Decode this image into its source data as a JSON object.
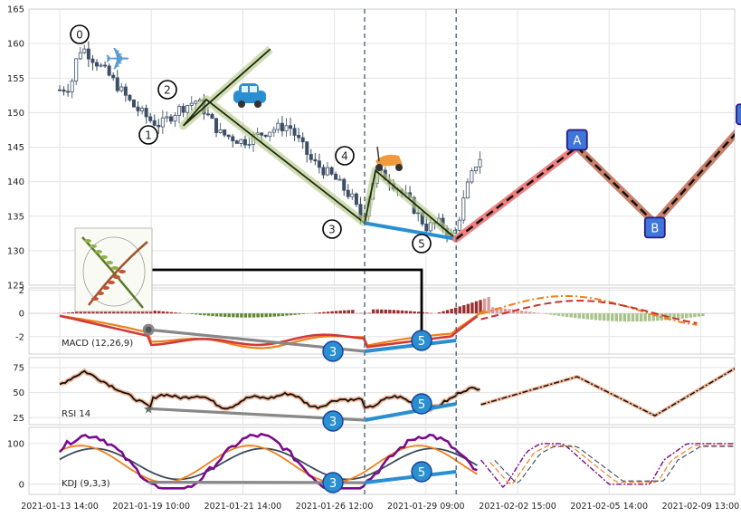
{
  "chart_data": [
    {
      "type": "candlestick",
      "name": "price",
      "ylim": [
        125,
        165
      ],
      "yticks": [
        125,
        130,
        135,
        140,
        145,
        150,
        155,
        160,
        165
      ],
      "x_tick_labels": [
        "2021-01-13 14:00",
        "2021-01-19 10:00",
        "2021-01-21 14:00",
        "2021-01-26 12:00",
        "2021-01-29 09:00",
        "2021-02-02 15:00",
        "2021-02-05 14:00",
        "2021-02-09 13:00"
      ],
      "wave_points": [
        {
          "label": "0",
          "x": 2.3,
          "price": 159.2
        },
        {
          "label": "1",
          "x": 1.35,
          "price": 148.1
        },
        {
          "label": "2",
          "x": 1.6,
          "price": 151.9
        },
        {
          "label": "3",
          "x": 3.33,
          "price": 134.0
        },
        {
          "label": "4",
          "x": 3.45,
          "price": 141.6
        },
        {
          "label": "5",
          "x": 4.33,
          "price": 131.7
        }
      ],
      "projection_points": [
        {
          "label": "A",
          "x": 5.65,
          "price": 145.0
        },
        {
          "label": "B",
          "x": 6.5,
          "price": 134.0
        },
        {
          "label": "C",
          "x": 7.5,
          "price": 148.7
        }
      ],
      "dashed_vertical_lines_at": [
        "2021-01-26 12:00",
        "2021-01-29 09:00"
      ],
      "icons": [
        "airplane-icon",
        "car-icon",
        "scooter-icon",
        "plant-thumbnail-icon"
      ]
    },
    {
      "type": "macd",
      "label": "MACD (12,26,9)",
      "ylim": [
        -3.5,
        2.2
      ],
      "yticks": [
        -2,
        0,
        2
      ],
      "divergence_markers": [
        "3",
        "5"
      ]
    },
    {
      "type": "line",
      "label": "RSI 14",
      "ylim": [
        18,
        85
      ],
      "yticks": [
        25,
        50,
        75
      ],
      "divergence_markers": [
        "3",
        "5"
      ]
    },
    {
      "type": "line",
      "label": "KDJ (9,3,3)",
      "ylim": [
        -25,
        140
      ],
      "yticks": [
        0,
        100
      ],
      "divergence_markers": [
        "3",
        "5"
      ]
    }
  ]
}
